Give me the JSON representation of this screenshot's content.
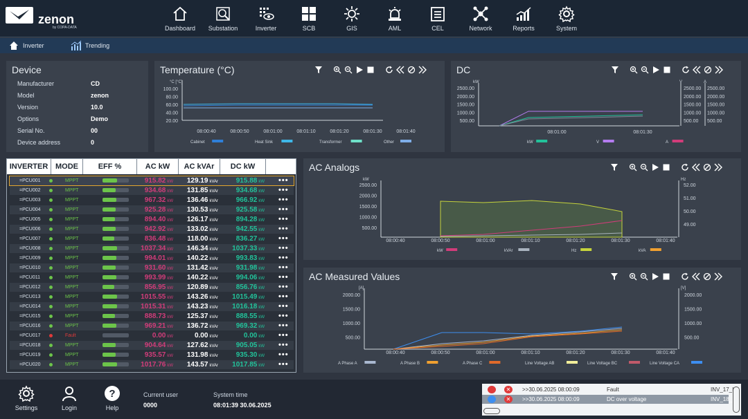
{
  "app": {
    "brand": "zenon",
    "brand_sub": "by COPA-DATA"
  },
  "nav": [
    {
      "label": "Dashboard",
      "icon": "home-icon"
    },
    {
      "label": "Substation",
      "icon": "substation-icon"
    },
    {
      "label": "Inverter",
      "icon": "inverter-icon"
    },
    {
      "label": "SCB",
      "icon": "scb-icon"
    },
    {
      "label": "GIS",
      "icon": "gis-icon"
    },
    {
      "label": "AML",
      "icon": "alarm-icon"
    },
    {
      "label": "CEL",
      "icon": "event-list-icon"
    },
    {
      "label": "Network",
      "icon": "network-icon"
    },
    {
      "label": "Reports",
      "icon": "reports-icon"
    },
    {
      "label": "System",
      "icon": "gear-icon"
    }
  ],
  "subnav": {
    "inverter": "Inverter",
    "trending": "Trending"
  },
  "device": {
    "title": "Device",
    "rows": [
      {
        "label": "Manufacturer",
        "value": "CD"
      },
      {
        "label": "Model",
        "value": "zenon"
      },
      {
        "label": "Version",
        "value": "10.0"
      },
      {
        "label": "Options",
        "value": "Demo"
      },
      {
        "label": "Serial No.",
        "value": "00"
      },
      {
        "label": "Device address",
        "value": "0"
      }
    ]
  },
  "temperature": {
    "title": "Temperature (°C)",
    "unit": "°C [°C]",
    "yticks": [
      "100.00",
      "80.00",
      "60.00",
      "40.00",
      "20.00"
    ],
    "xticks": [
      "08:00:40",
      "08:00:50",
      "08:01:00",
      "08:01:10",
      "08:01:20",
      "08:01:30",
      "08:01:40"
    ],
    "legend": [
      {
        "name": "Cabinet",
        "color": "#2f7fd8"
      },
      {
        "name": "Heat Sink",
        "color": "#3fb7e8"
      },
      {
        "name": "Transformer",
        "color": "#6fe0c8"
      },
      {
        "name": "Other",
        "color": "#7faee8"
      }
    ]
  },
  "dc": {
    "title": "DC",
    "unit_left": "kW",
    "unit_mid": "V",
    "unit_right": "A",
    "yticks": [
      "2500.00",
      "2000.00",
      "1500.00",
      "1000.00",
      "500.00"
    ],
    "xticks": [
      "08:01:00",
      "08:01:30"
    ],
    "legend": [
      {
        "name": "kW",
        "color": "#22c29a"
      },
      {
        "name": "V",
        "color": "#b47cf0"
      },
      {
        "name": "A",
        "color": "#d23c7a"
      }
    ]
  },
  "ac_analogs": {
    "title": "AC Analogs",
    "unit_left": "kW",
    "unit_right": "Hz",
    "yticks": [
      "2500.00",
      "2000.00",
      "1500.00",
      "1000.00",
      "500.00"
    ],
    "yticks_right": [
      "52.00",
      "51.00",
      "50.00",
      "49.00"
    ],
    "xticks": [
      "08:00:40",
      "08:00:50",
      "08:01:00",
      "08:01:10",
      "08:01:20",
      "08:01:30",
      "08:01:40"
    ],
    "legend": [
      {
        "name": "kW",
        "color": "#d23c7a"
      },
      {
        "name": "kVAr",
        "color": "#a9b3bf"
      },
      {
        "name": "Hz",
        "color": "#c6d43c"
      },
      {
        "name": "kVA",
        "color": "#f0a030"
      }
    ]
  },
  "ac_measured": {
    "title": "AC Measured Values",
    "unit_left": "[A]",
    "unit_right": "[V]",
    "yticks": [
      "2000.00",
      "1500.00",
      "1000.00",
      "500.00"
    ],
    "xticks": [
      "08:00:40",
      "08:00:50",
      "08:01:00",
      "08:01:10",
      "08:01:20",
      "08:01:30",
      "08:01:40"
    ],
    "legend": [
      {
        "name": "A Phase A",
        "color": "#a9b8d0"
      },
      {
        "name": "A Phase B",
        "color": "#f0a030"
      },
      {
        "name": "A Phase C",
        "color": "#e06a2a"
      },
      {
        "name": "Line Voltage AB",
        "color": "#f2ee9a"
      },
      {
        "name": "Line Voltage BC",
        "color": "#c05a6a"
      },
      {
        "name": "Line Voltage CA",
        "color": "#3d8ef0"
      }
    ]
  },
  "table": {
    "headers": [
      "INVERTER",
      "MODE",
      "EFF %",
      "AC kW",
      "AC kVAr",
      "DC kW"
    ],
    "kw_unit": "kW",
    "kvar_unit": "kVAr",
    "rows": [
      {
        "name": "=PCU001",
        "mode": "MPPT",
        "status": "ok",
        "eff": 0.55,
        "ac_kw": "915.82",
        "ac_kvar": "129.19",
        "dc_kw": "915.88"
      },
      {
        "name": "=PCU002",
        "mode": "MPPT",
        "status": "ok",
        "eff": 0.5,
        "ac_kw": "934.68",
        "ac_kvar": "131.85",
        "dc_kw": "934.68"
      },
      {
        "name": "=PCU003",
        "mode": "MPPT",
        "status": "ok",
        "eff": 0.52,
        "ac_kw": "967.32",
        "ac_kvar": "136.46",
        "dc_kw": "966.92"
      },
      {
        "name": "=PCU004",
        "mode": "MPPT",
        "status": "ok",
        "eff": 0.5,
        "ac_kw": "925.28",
        "ac_kvar": "130.53",
        "dc_kw": "925.58"
      },
      {
        "name": "=PCU005",
        "mode": "MPPT",
        "status": "ok",
        "eff": 0.48,
        "ac_kw": "894.40",
        "ac_kvar": "126.17",
        "dc_kw": "894.28"
      },
      {
        "name": "=PCU006",
        "mode": "MPPT",
        "status": "ok",
        "eff": 0.5,
        "ac_kw": "942.92",
        "ac_kvar": "133.02",
        "dc_kw": "942.55"
      },
      {
        "name": "=PCU007",
        "mode": "MPPT",
        "status": "ok",
        "eff": 0.45,
        "ac_kw": "836.48",
        "ac_kvar": "118.00",
        "dc_kw": "836.27"
      },
      {
        "name": "=PCU008",
        "mode": "MPPT",
        "status": "ok",
        "eff": 0.55,
        "ac_kw": "1037.34",
        "ac_kvar": "146.34",
        "dc_kw": "1037.33"
      },
      {
        "name": "=PCU009",
        "mode": "MPPT",
        "status": "ok",
        "eff": 0.53,
        "ac_kw": "994.01",
        "ac_kvar": "140.22",
        "dc_kw": "993.83"
      },
      {
        "name": "=PCU010",
        "mode": "MPPT",
        "status": "ok",
        "eff": 0.5,
        "ac_kw": "931.60",
        "ac_kvar": "131.42",
        "dc_kw": "931.98"
      },
      {
        "name": "=PCU011",
        "mode": "MPPT",
        "status": "ok",
        "eff": 0.53,
        "ac_kw": "993.99",
        "ac_kvar": "140.22",
        "dc_kw": "994.06"
      },
      {
        "name": "=PCU012",
        "mode": "MPPT",
        "status": "ok",
        "eff": 0.46,
        "ac_kw": "856.95",
        "ac_kvar": "120.89",
        "dc_kw": "856.76"
      },
      {
        "name": "=PCU013",
        "mode": "MPPT",
        "status": "ok",
        "eff": 0.55,
        "ac_kw": "1015.55",
        "ac_kvar": "143.26",
        "dc_kw": "1015.49"
      },
      {
        "name": "=PCU014",
        "mode": "MPPT",
        "status": "ok",
        "eff": 0.55,
        "ac_kw": "1015.31",
        "ac_kvar": "143.23",
        "dc_kw": "1016.18"
      },
      {
        "name": "=PCU015",
        "mode": "MPPT",
        "status": "ok",
        "eff": 0.48,
        "ac_kw": "888.73",
        "ac_kvar": "125.37",
        "dc_kw": "888.55"
      },
      {
        "name": "=PCU016",
        "mode": "MPPT",
        "status": "ok",
        "eff": 0.52,
        "ac_kw": "969.21",
        "ac_kvar": "136.72",
        "dc_kw": "969.32"
      },
      {
        "name": "=PCU017",
        "mode": "Fault",
        "status": "fault",
        "eff": 0,
        "ac_kw": "0.00",
        "ac_kvar": "0.00",
        "dc_kw": "0.00"
      },
      {
        "name": "=PCU018",
        "mode": "MPPT",
        "status": "ok",
        "eff": 0.49,
        "ac_kw": "904.64",
        "ac_kvar": "127.62",
        "dc_kw": "905.05"
      },
      {
        "name": "=PCU019",
        "mode": "MPPT",
        "status": "ok",
        "eff": 0.5,
        "ac_kw": "935.57",
        "ac_kvar": "131.98",
        "dc_kw": "935.30"
      },
      {
        "name": "=PCU020",
        "mode": "MPPT",
        "status": "ok",
        "eff": 0.55,
        "ac_kw": "1017.76",
        "ac_kvar": "143.57",
        "dc_kw": "1017.85"
      }
    ]
  },
  "bottom": {
    "settings": "Settings",
    "login": "Login",
    "help": "Help",
    "user_label": "Current user",
    "user_value": "0000",
    "time_label": "System time",
    "time_value": "08:01:39 30.06.2025"
  },
  "alarms": [
    {
      "time": ">>30.06.2025 08:00:09",
      "text": "Fault",
      "source": "INV_17_I"
    },
    {
      "time": ">>30.06.2025 08:00:09",
      "text": "DC over voltage",
      "source": "INV_18_"
    }
  ],
  "colors": {
    "kw": "#d23c7a",
    "kvar": "#ffffff",
    "dckw": "#22c29a",
    "ok": "#6cc44a",
    "fault": "#e03a3a",
    "mode": "#6cc44a"
  }
}
